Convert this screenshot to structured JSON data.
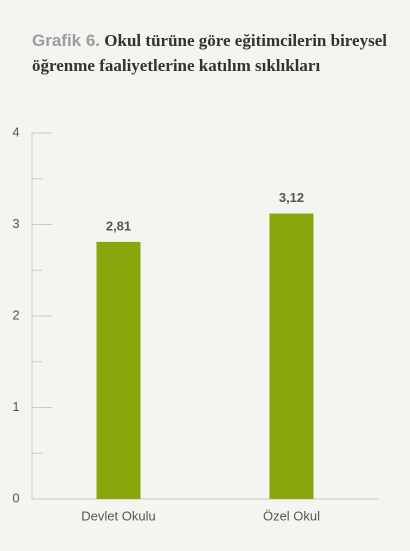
{
  "chart_data": {
    "type": "bar",
    "title_label": "Grafik 6.",
    "title": "Okul türüne göre eğitimcilerin bireysel öğrenme faaliyetlerine katılım sıklıkları",
    "categories": [
      "Devlet Okulu",
      "Özel Okul"
    ],
    "values": [
      2.81,
      3.12
    ],
    "value_labels": [
      "2,81",
      "3,12"
    ],
    "color": "#87a70d",
    "ylim": [
      0,
      4
    ],
    "yticks": [
      0,
      1,
      2,
      3,
      4
    ],
    "minor_yticks": [
      0.5,
      1.5,
      2.5,
      3.5
    ]
  }
}
